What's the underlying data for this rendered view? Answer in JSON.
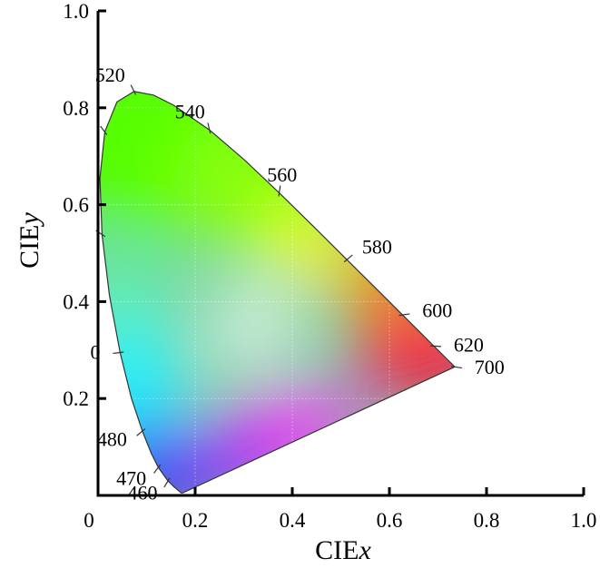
{
  "chart_data": {
    "type": "chromaticity",
    "xlabel": [
      "CIE",
      "x"
    ],
    "ylabel": [
      "CIE",
      "y"
    ],
    "xlim": [
      0,
      1
    ],
    "ylim": [
      0,
      1
    ],
    "xticks": [
      0,
      0.2,
      0.4,
      0.6,
      0.8,
      {
        "value": 1,
        "label": "1.0"
      }
    ],
    "yticks": [
      0.2,
      0.4,
      0.6,
      0.8,
      {
        "value": 1,
        "label": "1.0"
      }
    ],
    "grid": true,
    "locus": {
      "x": [
        0.1741,
        0.1714,
        0.1566,
        0.144,
        0.1241,
        0.1096,
        0.0913,
        0.0687,
        0.0454,
        0.0235,
        0.0082,
        0.0039,
        0.0139,
        0.0389,
        0.0743,
        0.1142,
        0.1547,
        0.2296,
        0.3016,
        0.3731,
        0.4441,
        0.5125,
        0.5752,
        0.627,
        0.6658,
        0.6915,
        0.719,
        0.7347
      ],
      "y": [
        0.005,
        0.0051,
        0.0177,
        0.0297,
        0.0578,
        0.0868,
        0.1327,
        0.2007,
        0.295,
        0.4127,
        0.5384,
        0.6548,
        0.7502,
        0.812,
        0.8338,
        0.8262,
        0.8059,
        0.7543,
        0.6923,
        0.6245,
        0.5547,
        0.4866,
        0.4242,
        0.3725,
        0.334,
        0.3083,
        0.2809,
        0.2653
      ]
    },
    "marked": {
      "labels": [
        "460",
        "470",
        "480",
        "0",
        null,
        null,
        "520",
        "540",
        "560",
        "580",
        "600",
        "620",
        "700"
      ],
      "x": [
        0.144,
        0.1241,
        0.0913,
        0.0454,
        0.0082,
        0.0139,
        0.0743,
        0.2296,
        0.3731,
        0.5125,
        0.627,
        0.6915,
        0.7347
      ],
      "y": [
        0.0297,
        0.0578,
        0.1327,
        0.295,
        0.5384,
        0.7502,
        0.8338,
        0.7543,
        0.6245,
        0.4866,
        0.3725,
        0.3083,
        0.2653
      ]
    }
  }
}
